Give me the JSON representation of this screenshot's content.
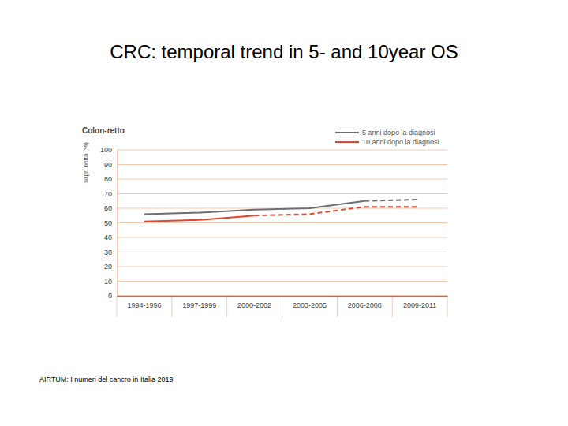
{
  "slide_title": "CRC: temporal trend in 5- and 10year OS",
  "source": "AIRTUM: I numeri del cancro in Italia 2019",
  "chart_data": {
    "type": "line",
    "title": "Colon-retto",
    "ylabel": "sopr. netta (%)",
    "categories": [
      "1994-1996",
      "1997-1999",
      "2000-2002",
      "2003-2005",
      "2006-2008",
      "2009-2011"
    ],
    "series": [
      {
        "name": "5 anni dopo la diagnosi",
        "color": "#6d6e71",
        "line_style": "solid",
        "values": [
          56,
          57,
          59,
          60,
          65,
          null
        ]
      },
      {
        "name": "10 anni dopo la diagnosi",
        "color": "#e2452b",
        "line_style": "solid",
        "values": [
          51,
          52,
          55,
          null,
          null,
          null
        ]
      },
      {
        "color": "#6d6e71",
        "line_style": "dashed",
        "values": [
          null,
          null,
          null,
          null,
          65,
          66
        ]
      },
      {
        "color": "#e2452b",
        "line_style": "dashed",
        "values": [
          null,
          null,
          55,
          56,
          61,
          61
        ]
      }
    ],
    "ylim": [
      0,
      100
    ],
    "yticks": [
      0,
      10,
      20,
      30,
      40,
      50,
      60,
      70,
      80,
      90,
      100
    ],
    "grid": true,
    "legend": "top-right"
  }
}
